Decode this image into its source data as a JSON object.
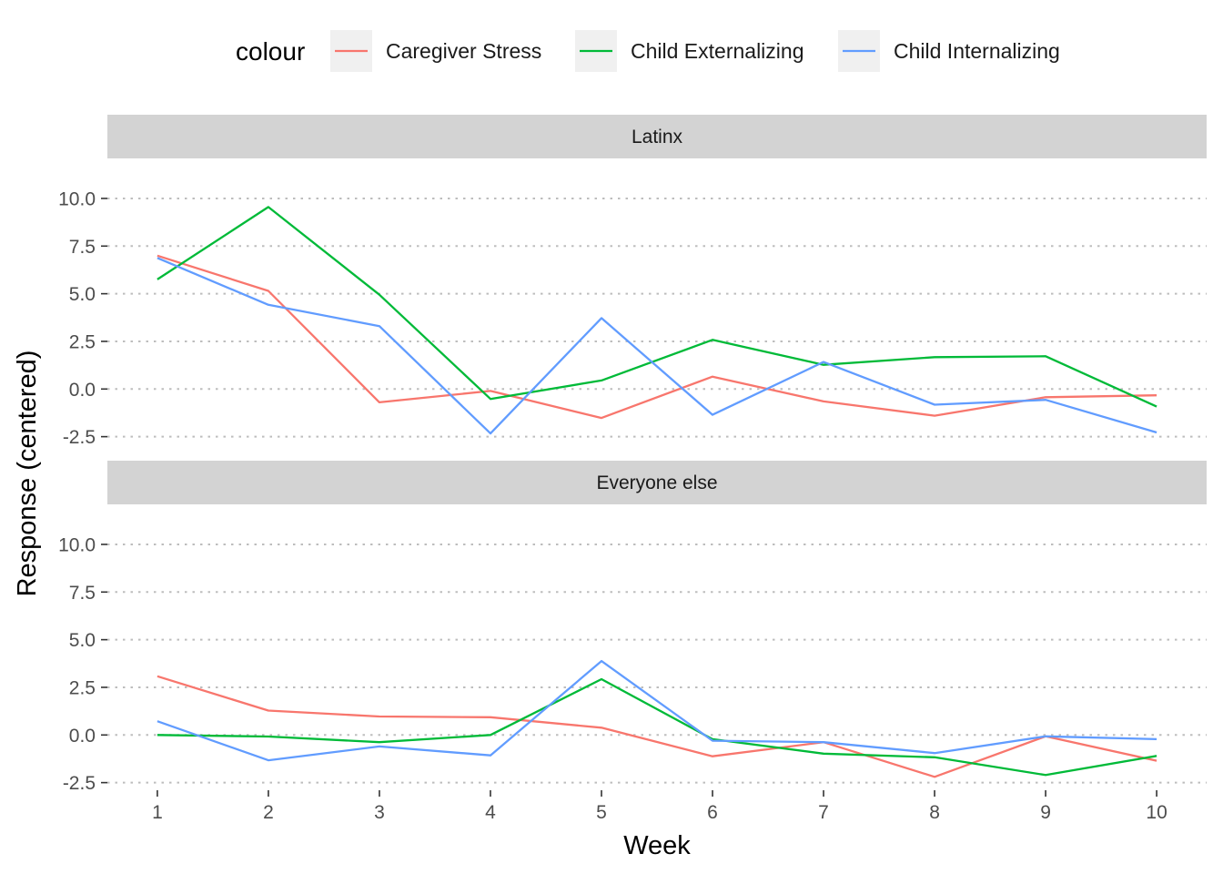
{
  "chart_data": {
    "type": "line",
    "xlabel": "Week",
    "ylabel": "Response (centered)",
    "x": [
      1,
      2,
      3,
      4,
      5,
      6,
      7,
      8,
      9,
      10
    ],
    "x_ticks": [
      "1",
      "2",
      "3",
      "4",
      "5",
      "6",
      "7",
      "8",
      "9",
      "10"
    ],
    "y_ticks": [
      "-2.5",
      "0.0",
      "2.5",
      "5.0",
      "7.5",
      "10.0"
    ],
    "y_tick_values": [
      -2.5,
      0,
      2.5,
      5,
      7.5,
      10
    ],
    "ylim": [
      -2.9,
      12.1
    ],
    "grid": "horizontal dotted",
    "legend": {
      "title": "colour",
      "position": "top",
      "entries": [
        {
          "name": "Caregiver Stress",
          "color": "#F8766D"
        },
        {
          "name": "Child Externalizing",
          "color": "#00BA38"
        },
        {
          "name": "Child Internalizing",
          "color": "#619CFF"
        }
      ]
    },
    "facets": [
      {
        "label": "Latinx",
        "series": [
          {
            "name": "Caregiver Stress",
            "values": [
              7.0,
              5.15,
              -0.7,
              -0.1,
              -1.52,
              0.65,
              -0.65,
              -1.4,
              -0.43,
              -0.33
            ]
          },
          {
            "name": "Child Externalizing",
            "values": [
              5.75,
              9.55,
              4.95,
              -0.52,
              0.45,
              2.58,
              1.27,
              1.67,
              1.72,
              -0.92
            ]
          },
          {
            "name": "Child Internalizing",
            "values": [
              6.88,
              4.42,
              3.3,
              -2.33,
              3.72,
              -1.35,
              1.42,
              -0.82,
              -0.57,
              -2.28
            ]
          }
        ]
      },
      {
        "label": "Everyone else",
        "series": [
          {
            "name": "Caregiver Stress",
            "values": [
              3.08,
              1.28,
              0.97,
              0.93,
              0.38,
              -1.12,
              -0.38,
              -2.2,
              -0.07,
              -1.35
            ]
          },
          {
            "name": "Child Externalizing",
            "values": [
              0.0,
              -0.08,
              -0.38,
              0.0,
              2.93,
              -0.22,
              -0.98,
              -1.17,
              -2.1,
              -1.1
            ]
          },
          {
            "name": "Child Internalizing",
            "values": [
              0.72,
              -1.33,
              -0.6,
              -1.07,
              3.88,
              -0.3,
              -0.38,
              -0.95,
              -0.07,
              -0.22
            ]
          }
        ]
      }
    ]
  }
}
